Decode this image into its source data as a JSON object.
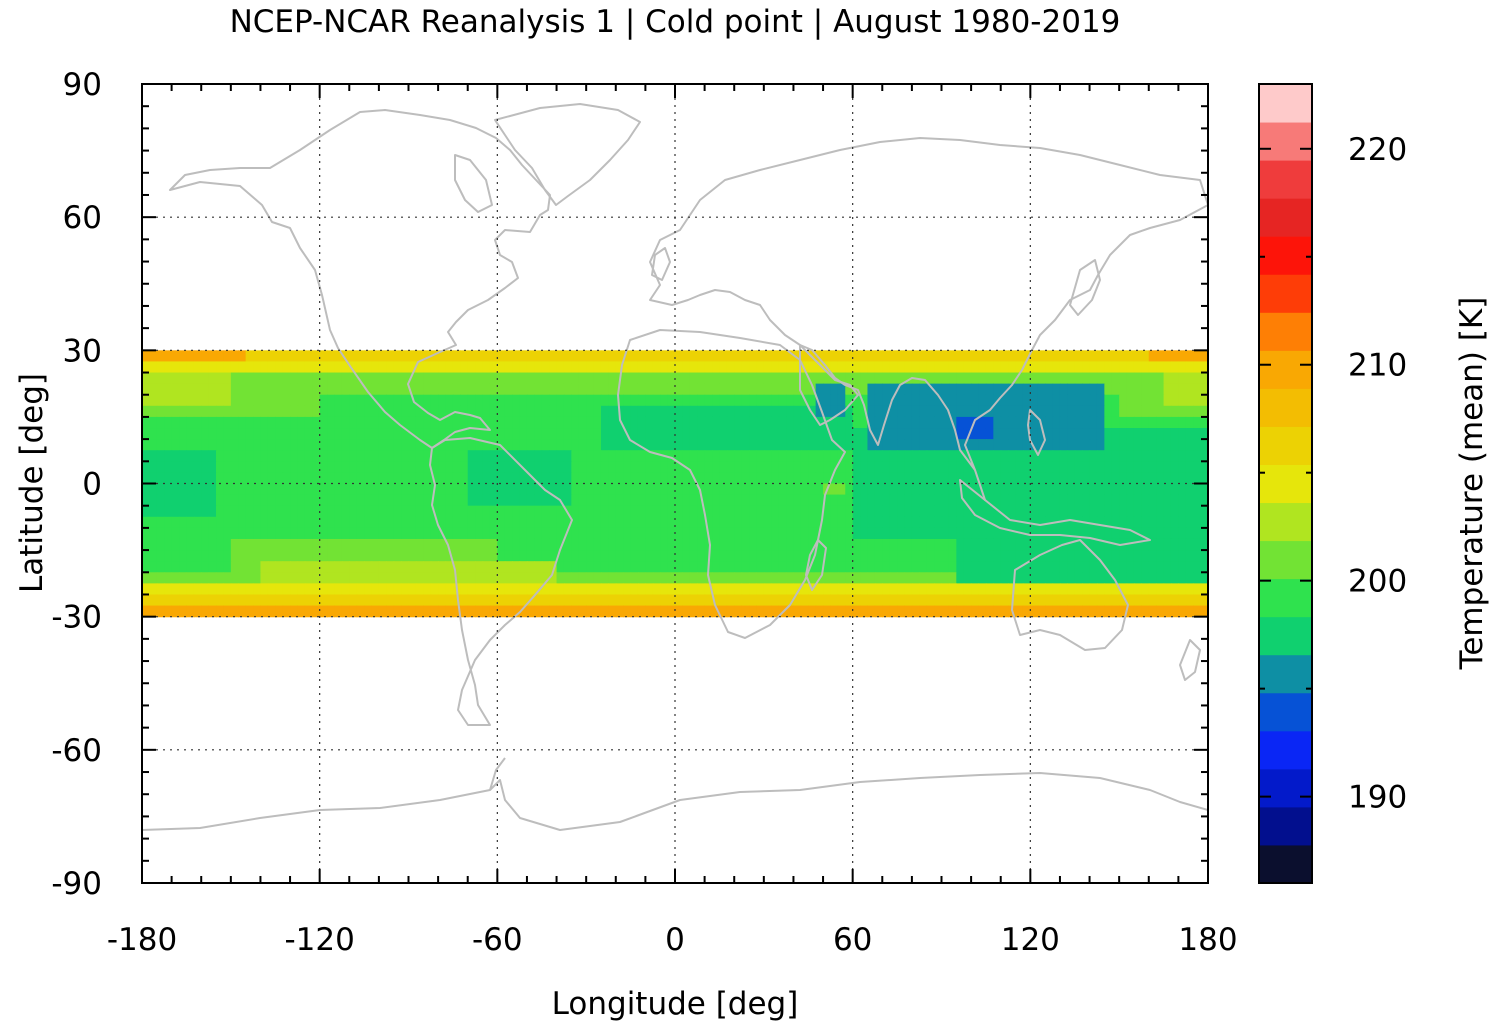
{
  "chart_data": {
    "type": "heatmap",
    "title": "NCEP-NCAR Reanalysis 1 | Cold point | August 1980-2019",
    "xlabel": "Longitude [deg]",
    "ylabel": "Latitude [deg]",
    "colorbar_label": "Temperature (mean) [K]",
    "xlim": [
      -180,
      180
    ],
    "ylim": [
      -90,
      90
    ],
    "x_ticks": [
      -180,
      -120,
      -60,
      0,
      60,
      120,
      180
    ],
    "y_ticks": [
      90,
      60,
      30,
      0,
      -30,
      -60,
      -90
    ],
    "x_tick_labels": [
      "-180",
      "-120",
      "-60",
      "0",
      "60",
      "120",
      "180"
    ],
    "y_tick_labels": [
      "90",
      "60",
      "30",
      "0",
      "-30",
      "-60",
      "-90"
    ],
    "colorbar_ticks": [
      220,
      210,
      200,
      190
    ],
    "colorbar_tick_labels": [
      "220",
      "210",
      "200",
      "190"
    ],
    "colorbar_range": [
      186,
      223
    ],
    "grid": true,
    "data_lat_range": [
      -30,
      30
    ],
    "overlay": "coastlines",
    "colorscale": [
      "#0b0f2e",
      "#020f8e",
      "#031aca",
      "#0a26f5",
      "#0652d6",
      "#0e8fa4",
      "#10d06f",
      "#2fe24e",
      "#72e334",
      "#b0e520",
      "#e6e60b",
      "#ecd204",
      "#f3bd02",
      "#f9a803",
      "#fe7f05",
      "#fe3d07",
      "#fd1409",
      "#e62523",
      "#ef3c3c",
      "#f77a78",
      "#fecaca"
    ],
    "color_classes": {
      "blue": "#0652d6",
      "teal": "#0e8fa4",
      "green_dark": "#10d06f",
      "green": "#2fe24e",
      "green_light": "#72e334",
      "lime": "#b0e520",
      "yellow": "#e6e60b",
      "gold": "#ecd204",
      "amber": "#f3bd02",
      "orange": "#f9a803"
    }
  }
}
